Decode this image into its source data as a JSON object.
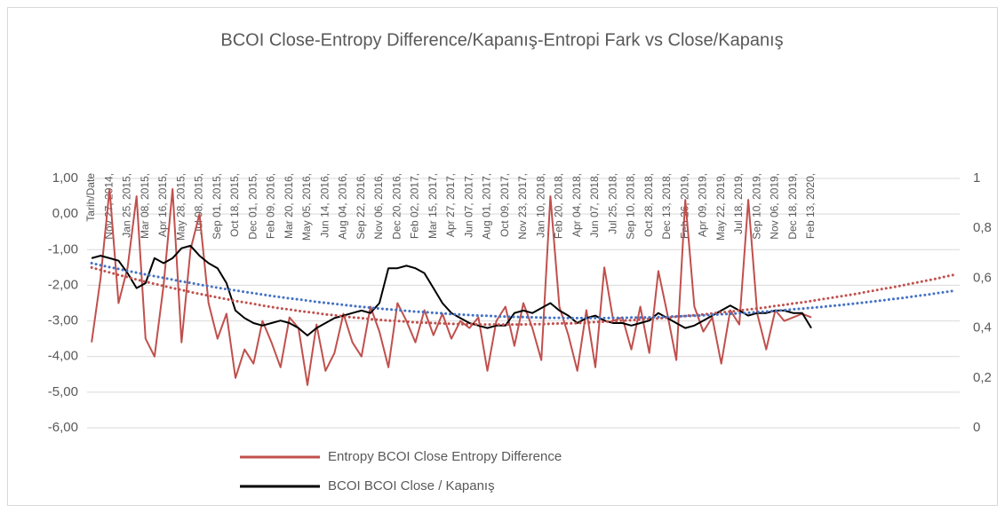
{
  "chart_data": {
    "type": "line",
    "title": "BCOI Close-Entropy Difference/Kapanış-Entropi Fark vs Close/Kapanış",
    "categories": [
      "Tarih/Date",
      null,
      "Nov 27, 2014,",
      null,
      "Jan 25, 2015,",
      null,
      "Mar 08, 2015,",
      null,
      "Apr 16, 2015,",
      null,
      "May 28, 2015,",
      null,
      "Jul 08, 2015,",
      null,
      "Sep 01, 2015,",
      null,
      "Oct 18, 2015,",
      null,
      "Dec 01, 2015,",
      null,
      "Feb 09, 2016,",
      null,
      "Mar 20, 2016,",
      null,
      "May 05, 2016,",
      null,
      "Jun 14, 2016,",
      null,
      "Aug 04, 2016,",
      null,
      "Sep 22, 2016,",
      null,
      "Nov 06, 2016,",
      null,
      "Dec 20, 2016,",
      null,
      "Feb 02, 2017,",
      null,
      "Mar 15, 2017,",
      null,
      "Apr 27, 2017,",
      null,
      "Jun 07, 2017,",
      null,
      "Aug 01, 2017,",
      null,
      "Oct 09, 2017,",
      null,
      "Nov 23, 2017,",
      null,
      "Jan 10, 2018,",
      null,
      "Feb 20, 2018,",
      null,
      "Apr 04, 2018,",
      null,
      "Jun 07, 2018,",
      null,
      "Jul 25, 2018,",
      null,
      "Sep 10, 2018,",
      null,
      "Oct 28, 2018,",
      null,
      "Dec 13, 2018,",
      null,
      "Feb 26, 2019,",
      null,
      "Apr 09, 2019,",
      null,
      "May 22, 2019,",
      null,
      "Jul 18, 2019,",
      null,
      "Sep 10, 2019,",
      null,
      "Nov 06, 2019,",
      null,
      "Dec 18, 2019,",
      null,
      "Feb 13, 2020,",
      null,
      null,
      null,
      null,
      null,
      null,
      null,
      null,
      null,
      null,
      null,
      null,
      null,
      null,
      null,
      null
    ],
    "series": [
      {
        "name": "Entropy BCOI Close Entropy Difference",
        "color": "#c0504d",
        "axis": "y",
        "values": [
          -3.6,
          -1.8,
          0.7,
          -2.5,
          -1.5,
          0.5,
          -3.5,
          -4,
          -2,
          0.7,
          -3.6,
          -1,
          0,
          -2.5,
          -3.5,
          -2.8,
          -4.6,
          -3.8,
          -4.2,
          -3,
          -3.6,
          -4.3,
          -2.9,
          -3.2,
          -4.8,
          -3.1,
          -4.4,
          -3.9,
          -2.8,
          -3.6,
          -4,
          -2.6,
          -3.3,
          -4.3,
          -2.5,
          -3,
          -3.6,
          -2.7,
          -3.4,
          -2.8,
          -3.5,
          -3,
          -3.2,
          -2.9,
          -4.4,
          -3,
          -2.6,
          -3.7,
          -2.5,
          -3.2,
          -4.1,
          0.5,
          -2.6,
          -3.4,
          -4.4,
          -2.7,
          -4.3,
          -1.5,
          -3,
          -2.9,
          -3.8,
          -2.6,
          -3.9,
          -1.6,
          -2.8,
          -4.1,
          0.4,
          -2.6,
          -3.3,
          -2.9,
          -4.2,
          -2.7,
          -3.1,
          0.4,
          -2.8,
          -3.8,
          -2.7,
          -3,
          -2.9,
          -2.8,
          -2.9,
          null,
          null,
          null,
          null,
          null,
          null,
          null,
          null,
          null,
          null,
          null,
          null,
          null,
          null,
          null,
          null
        ]
      },
      {
        "name": "BCOI BCOI Close / Kapanış",
        "color": "#000000",
        "axis": "y2",
        "values": [
          0.68,
          0.69,
          0.68,
          0.67,
          0.62,
          0.56,
          0.58,
          0.68,
          0.66,
          0.68,
          0.72,
          0.73,
          0.69,
          0.66,
          0.64,
          0.58,
          0.47,
          0.44,
          0.42,
          0.41,
          0.42,
          0.43,
          0.42,
          0.4,
          0.37,
          0.4,
          0.42,
          0.44,
          0.45,
          0.46,
          0.47,
          0.46,
          0.5,
          0.64,
          0.64,
          0.65,
          0.64,
          0.62,
          0.56,
          0.5,
          0.46,
          0.44,
          0.42,
          0.41,
          0.4,
          0.41,
          0.41,
          0.46,
          0.47,
          0.46,
          0.48,
          0.5,
          0.47,
          0.45,
          0.42,
          0.44,
          0.45,
          0.43,
          0.42,
          0.42,
          0.41,
          0.42,
          0.43,
          0.46,
          0.44,
          0.42,
          0.4,
          0.41,
          0.43,
          0.45,
          0.47,
          0.49,
          0.47,
          0.45,
          0.46,
          0.46,
          0.47,
          0.47,
          0.46,
          0.46,
          0.4,
          null,
          null,
          null,
          null,
          null,
          null,
          null,
          null,
          null,
          null,
          null,
          null,
          null,
          null,
          null,
          null
        ]
      },
      {
        "color": "#c0504d",
        "axis": "y",
        "dashed": true,
        "values": [
          -1.5,
          -1.57,
          -1.64,
          -1.71,
          -1.77,
          -1.84,
          -1.9,
          -1.96,
          -2.02,
          -2.08,
          -2.13,
          -2.19,
          -2.24,
          -2.29,
          -2.34,
          -2.39,
          -2.44,
          -2.48,
          -2.52,
          -2.57,
          -2.61,
          -2.65,
          -2.68,
          -2.72,
          -2.75,
          -2.78,
          -2.82,
          -2.84,
          -2.87,
          -2.9,
          -2.92,
          -2.95,
          -2.97,
          -2.99,
          -3,
          -3.02,
          -3.04,
          -3.05,
          -3.06,
          -3.07,
          -3.08,
          -3.09,
          -3.09,
          -3.1,
          -3.1,
          -3.1,
          -3.1,
          -3.1,
          -3.1,
          -3.09,
          -3.09,
          -3.08,
          -3.07,
          -3.07,
          -3.06,
          -3.05,
          -3.03,
          -3.02,
          -3.01,
          -2.99,
          -2.98,
          -2.96,
          -2.94,
          -2.93,
          -2.91,
          -2.88,
          -2.86,
          -2.84,
          -2.82,
          -2.79,
          -2.76,
          -2.74,
          -2.71,
          -2.68,
          -2.65,
          -2.62,
          -2.58,
          -2.55,
          -2.51,
          -2.48,
          -2.44,
          -2.4,
          -2.36,
          -2.32,
          -2.28,
          -2.24,
          -2.19,
          -2.15,
          -2.1,
          -2.06,
          -2.01,
          -1.96,
          -1.91,
          -1.86,
          -1.81,
          -1.75,
          -1.7
        ]
      },
      {
        "color": "#4472c4",
        "axis": "y2",
        "dashed": true,
        "values": [
          0.66,
          0.652,
          0.644,
          0.637,
          0.629,
          0.622,
          0.615,
          0.608,
          0.601,
          0.594,
          0.587,
          0.581,
          0.574,
          0.568,
          0.562,
          0.556,
          0.551,
          0.545,
          0.54,
          0.534,
          0.529,
          0.524,
          0.519,
          0.515,
          0.51,
          0.505,
          0.501,
          0.497,
          0.493,
          0.489,
          0.485,
          0.482,
          0.478,
          0.475,
          0.472,
          0.469,
          0.466,
          0.464,
          0.461,
          0.459,
          0.456,
          0.454,
          0.452,
          0.45,
          0.449,
          0.447,
          0.446,
          0.445,
          0.444,
          0.443,
          0.442,
          0.441,
          0.441,
          0.44,
          0.44,
          0.44,
          0.44,
          0.44,
          0.441,
          0.441,
          0.442,
          0.442,
          0.443,
          0.444,
          0.445,
          0.447,
          0.448,
          0.449,
          0.451,
          0.453,
          0.455,
          0.457,
          0.459,
          0.461,
          0.464,
          0.466,
          0.469,
          0.472,
          0.475,
          0.478,
          0.481,
          0.484,
          0.488,
          0.491,
          0.495,
          0.499,
          0.503,
          0.507,
          0.511,
          0.516,
          0.52,
          0.525,
          0.53,
          0.534,
          0.54,
          0.545,
          0.55
        ]
      }
    ],
    "ylim": [
      -6,
      1
    ],
    "yticks": [
      {
        "value": -6,
        "label": "-6,00"
      },
      {
        "value": -5,
        "label": "-5,00"
      },
      {
        "value": -4,
        "label": "-4,00"
      },
      {
        "value": -3,
        "label": "-3,00"
      },
      {
        "value": -2,
        "label": "-2,00"
      },
      {
        "value": -1,
        "label": "-1,00"
      },
      {
        "value": 0,
        "label": "0,00"
      },
      {
        "value": 1,
        "label": "1,00"
      }
    ],
    "y2lim": [
      0,
      1
    ],
    "y2ticks": [
      0,
      {
        "value": 0.2,
        "label": "0,2"
      },
      {
        "value": 0.4,
        "label": "0,4"
      },
      {
        "value": 0.6,
        "label": "0,6"
      },
      {
        "value": 0.8,
        "label": "0,8"
      },
      1
    ],
    "grid": true,
    "legend": "bottom"
  }
}
